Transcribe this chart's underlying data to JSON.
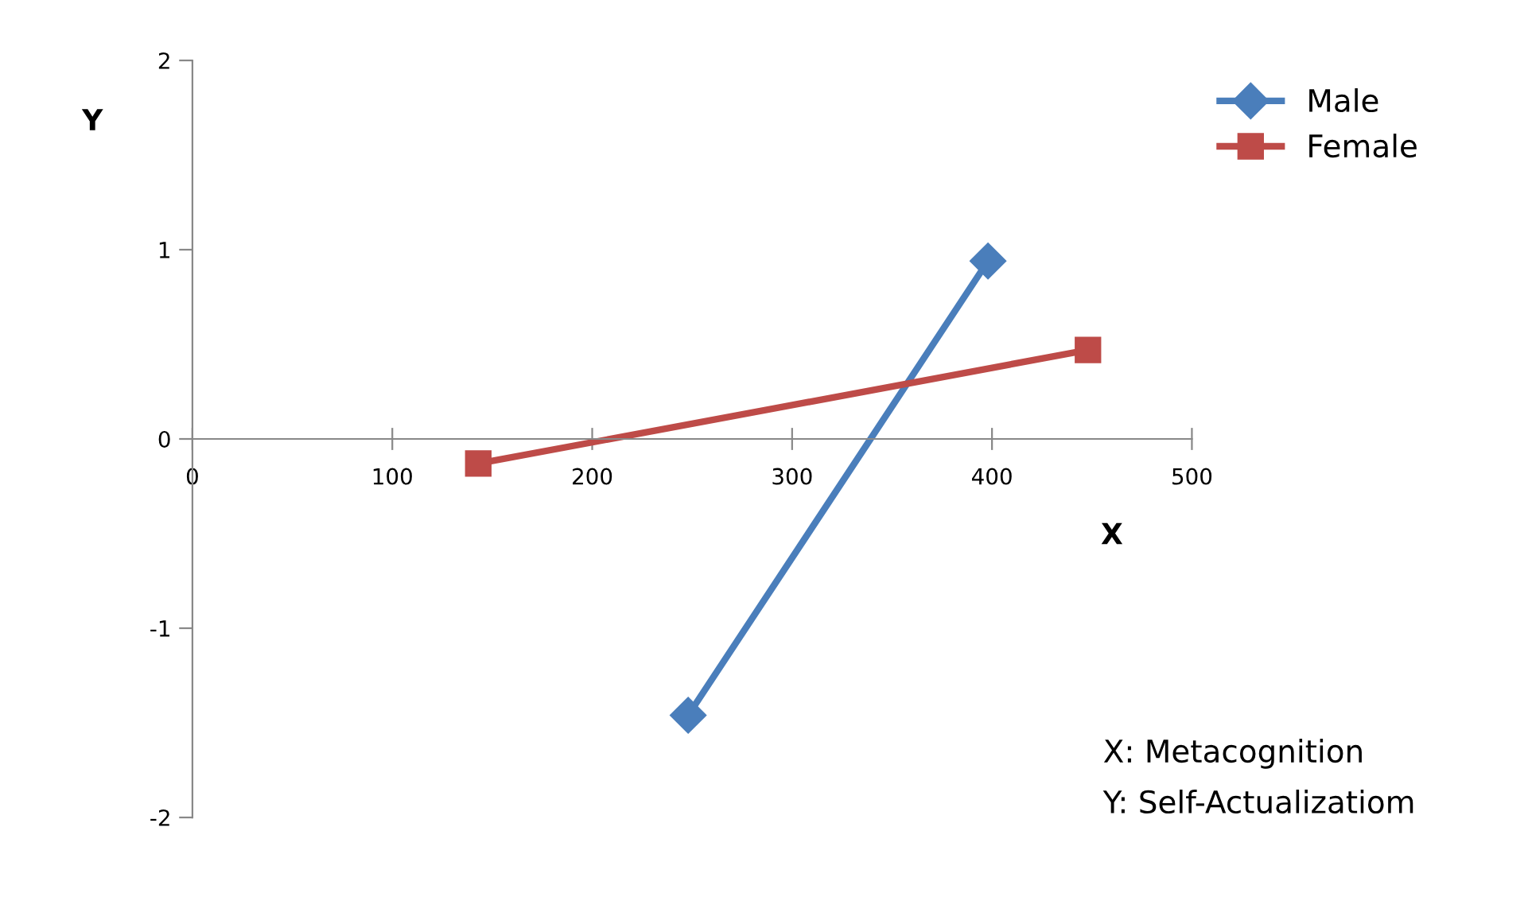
{
  "chart_data": {
    "type": "line",
    "xlabel": "X",
    "ylabel": "Y",
    "xlim": [
      0,
      500
    ],
    "xticks": [
      0,
      100,
      200,
      300,
      400,
      500
    ],
    "ylim": [
      -2,
      2
    ],
    "yticks": [
      -2,
      -1,
      0,
      1,
      2
    ],
    "grid": false,
    "legend": "top right",
    "line_style": "solid",
    "series": [
      {
        "name": "Male",
        "color": "#4a7ebb",
        "marker": "diamond",
        "x": [
          248,
          398
        ],
        "values": [
          -1.46,
          0.94
        ]
      },
      {
        "name": "Female",
        "color": "#be4b48",
        "marker": "square",
        "x": [
          143,
          448
        ],
        "values": [
          -0.13,
          0.47
        ]
      }
    ],
    "annotations": [
      "X: Metacognition",
      "Y: Self-Actualizatiom"
    ]
  }
}
